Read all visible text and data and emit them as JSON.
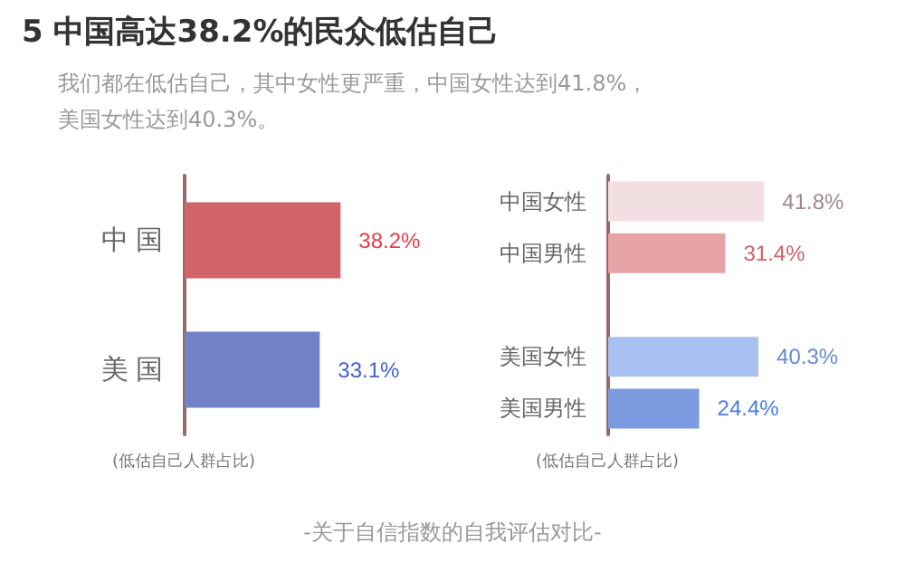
{
  "chart_data": [
    {
      "type": "bar",
      "orientation": "horizontal",
      "title": "5 中国高达38.2%的民众低估自己",
      "subtitle": "我们都在低估自己，其中女性更严重，中国女性达到41.8%，美国女性达到40.3%。",
      "xlabel": "(低估自己人群占比)",
      "annotations": [
        "-关于自信指数的自我评估对比-"
      ],
      "categories": [
        "中 国",
        "美 国"
      ],
      "values": [
        38.2,
        33.1
      ],
      "colors": [
        "#d0646a",
        "#7182c8"
      ],
      "value_labels": [
        "38.2%",
        "33.1%"
      ]
    },
    {
      "type": "bar",
      "orientation": "horizontal",
      "xlabel": "(低估自己人群占比)",
      "categories": [
        "中国女性",
        "中国男性",
        null,
        "美国女性",
        "美国男性"
      ],
      "values": [
        41.8,
        31.4,
        null,
        40.3,
        24.4
      ],
      "colors": [
        "#f2dfe1",
        "#e8a3a7",
        null,
        "#a9c0f0",
        "#7d9be0"
      ],
      "value_labels": [
        "41.8%",
        "31.4%",
        null,
        "40.3%",
        "24.4%"
      ]
    }
  ]
}
